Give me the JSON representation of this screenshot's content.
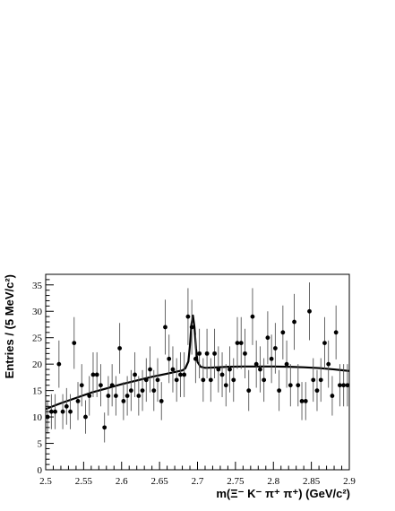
{
  "chart_data": {
    "type": "scatter",
    "title": "",
    "xlabel": "m(Ξ⁻ K⁻ π⁺ π⁺)   (GeV/c²)",
    "ylabel": "Entries / (5 MeV/c²)",
    "xlim": [
      2.5,
      2.9
    ],
    "ylim": [
      0,
      37
    ],
    "x_ticks": [
      "2.5",
      "2.55",
      "2.6",
      "2.65",
      "2.7",
      "2.75",
      "2.8",
      "2.85",
      "2.9"
    ],
    "y_ticks": [
      "0",
      "5",
      "10",
      "15",
      "20",
      "25",
      "30",
      "35"
    ],
    "grid": false,
    "legend": "none",
    "series": [
      {
        "kind": "data-points-with-error-bars",
        "x": [
          2.5025,
          2.5075,
          2.5125,
          2.5175,
          2.5225,
          2.5275,
          2.5325,
          2.5375,
          2.5425,
          2.5475,
          2.5525,
          2.5575,
          2.5625,
          2.5675,
          2.5725,
          2.5775,
          2.5825,
          2.5875,
          2.5925,
          2.5975,
          2.6025,
          2.6075,
          2.6125,
          2.6175,
          2.6225,
          2.6275,
          2.6325,
          2.6375,
          2.6425,
          2.6475,
          2.6525,
          2.6575,
          2.6625,
          2.6675,
          2.6725,
          2.6775,
          2.6825,
          2.6875,
          2.6925,
          2.6975,
          2.7025,
          2.7075,
          2.7125,
          2.7175,
          2.7225,
          2.7275,
          2.7325,
          2.7375,
          2.7425,
          2.7475,
          2.7525,
          2.7575,
          2.7625,
          2.7675,
          2.7725,
          2.7775,
          2.7825,
          2.7875,
          2.7925,
          2.7975,
          2.8025,
          2.8075,
          2.8125,
          2.8175,
          2.8225,
          2.8275,
          2.8325,
          2.8375,
          2.8425,
          2.8475,
          2.8525,
          2.8575,
          2.8625,
          2.8675,
          2.8725,
          2.8775,
          2.8825,
          2.8875,
          2.8925,
          2.8975
        ],
        "y": [
          10,
          11,
          11,
          20,
          11,
          12,
          11,
          24,
          13,
          16,
          10,
          14,
          18,
          18,
          16,
          8,
          14,
          16,
          14,
          23,
          13,
          14,
          15,
          18,
          14,
          15,
          17,
          19,
          15,
          17,
          13,
          27,
          21,
          19,
          17,
          18,
          18,
          29,
          27,
          21,
          22,
          17,
          22,
          17,
          22,
          19,
          18,
          16,
          19,
          17,
          24,
          24,
          22,
          15,
          29,
          20,
          19,
          17,
          25,
          21,
          23,
          15,
          26,
          20,
          16,
          28,
          16,
          13,
          13,
          30,
          17,
          15,
          17,
          24,
          20,
          14,
          26,
          16,
          16,
          16
        ]
      },
      {
        "kind": "fit-curve",
        "x": [
          2.5,
          2.52,
          2.54,
          2.56,
          2.58,
          2.6,
          2.62,
          2.64,
          2.66,
          2.68,
          2.684,
          2.688,
          2.69,
          2.692,
          2.694,
          2.696,
          2.698,
          2.7,
          2.704,
          2.71,
          2.72,
          2.74,
          2.76,
          2.78,
          2.8,
          2.82,
          2.84,
          2.86,
          2.88,
          2.9
        ],
        "y": [
          11.5,
          12.6,
          13.6,
          14.6,
          15.4,
          16.2,
          16.9,
          17.6,
          18.2,
          18.8,
          19.2,
          20.5,
          23.5,
          27.5,
          29.2,
          27,
          23,
          20.4,
          19.5,
          19.3,
          19.35,
          19.5,
          19.55,
          19.55,
          19.55,
          19.5,
          19.4,
          19.25,
          19,
          18.7
        ]
      }
    ]
  }
}
